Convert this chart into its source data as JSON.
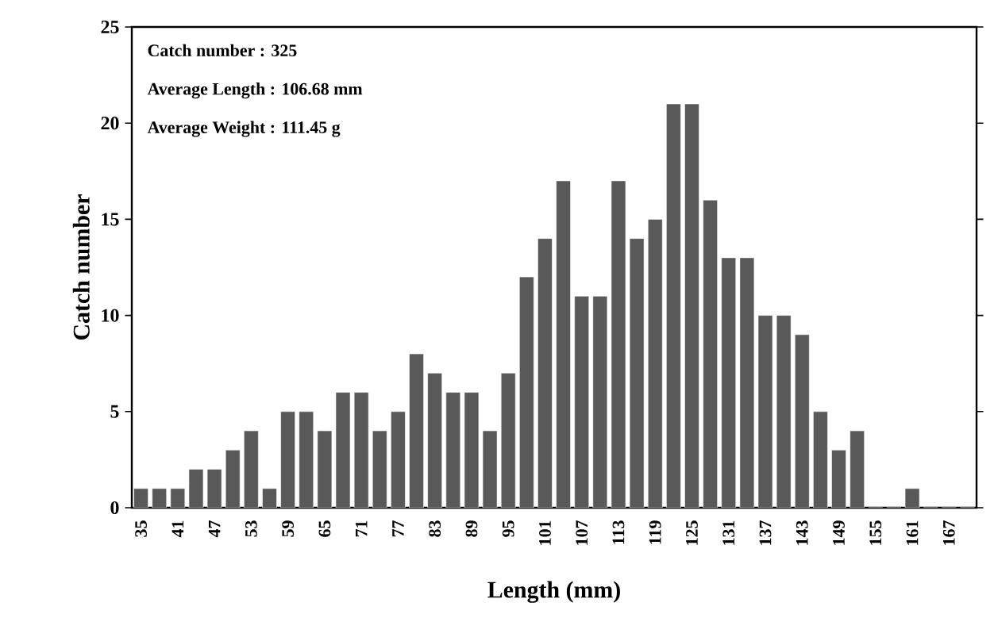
{
  "chart_data": {
    "type": "bar",
    "xlabel": "Length (mm)",
    "ylabel": "Catch number",
    "annotations": [
      "Catch number : 325",
      "Average Length : 106.68 mm",
      "Average Weight : 111.45 g"
    ],
    "categories": [
      "35",
      null,
      "41",
      null,
      "47",
      null,
      "53",
      null,
      "59",
      null,
      "65",
      null,
      "71",
      null,
      "77",
      null,
      "83",
      null,
      "89",
      null,
      "95",
      null,
      "101",
      null,
      "107",
      null,
      "113",
      null,
      "119",
      null,
      "125",
      null,
      "131",
      null,
      "137",
      null,
      "143",
      null,
      "149",
      null,
      "155",
      null,
      "161",
      null,
      "167",
      null
    ],
    "values": [
      1,
      1,
      1,
      2,
      2,
      3,
      4,
      1,
      5,
      5,
      4,
      6,
      6,
      4,
      5,
      8,
      7,
      6,
      6,
      4,
      7,
      12,
      14,
      17,
      11,
      11,
      17,
      14,
      15,
      21,
      21,
      16,
      13,
      13,
      10,
      10,
      9,
      5,
      3,
      4,
      0,
      0,
      1,
      0,
      0,
      0
    ],
    "color": "#595959",
    "ylim": [
      0,
      25
    ],
    "yticks": [
      0,
      5,
      10,
      15,
      20,
      25
    ]
  }
}
